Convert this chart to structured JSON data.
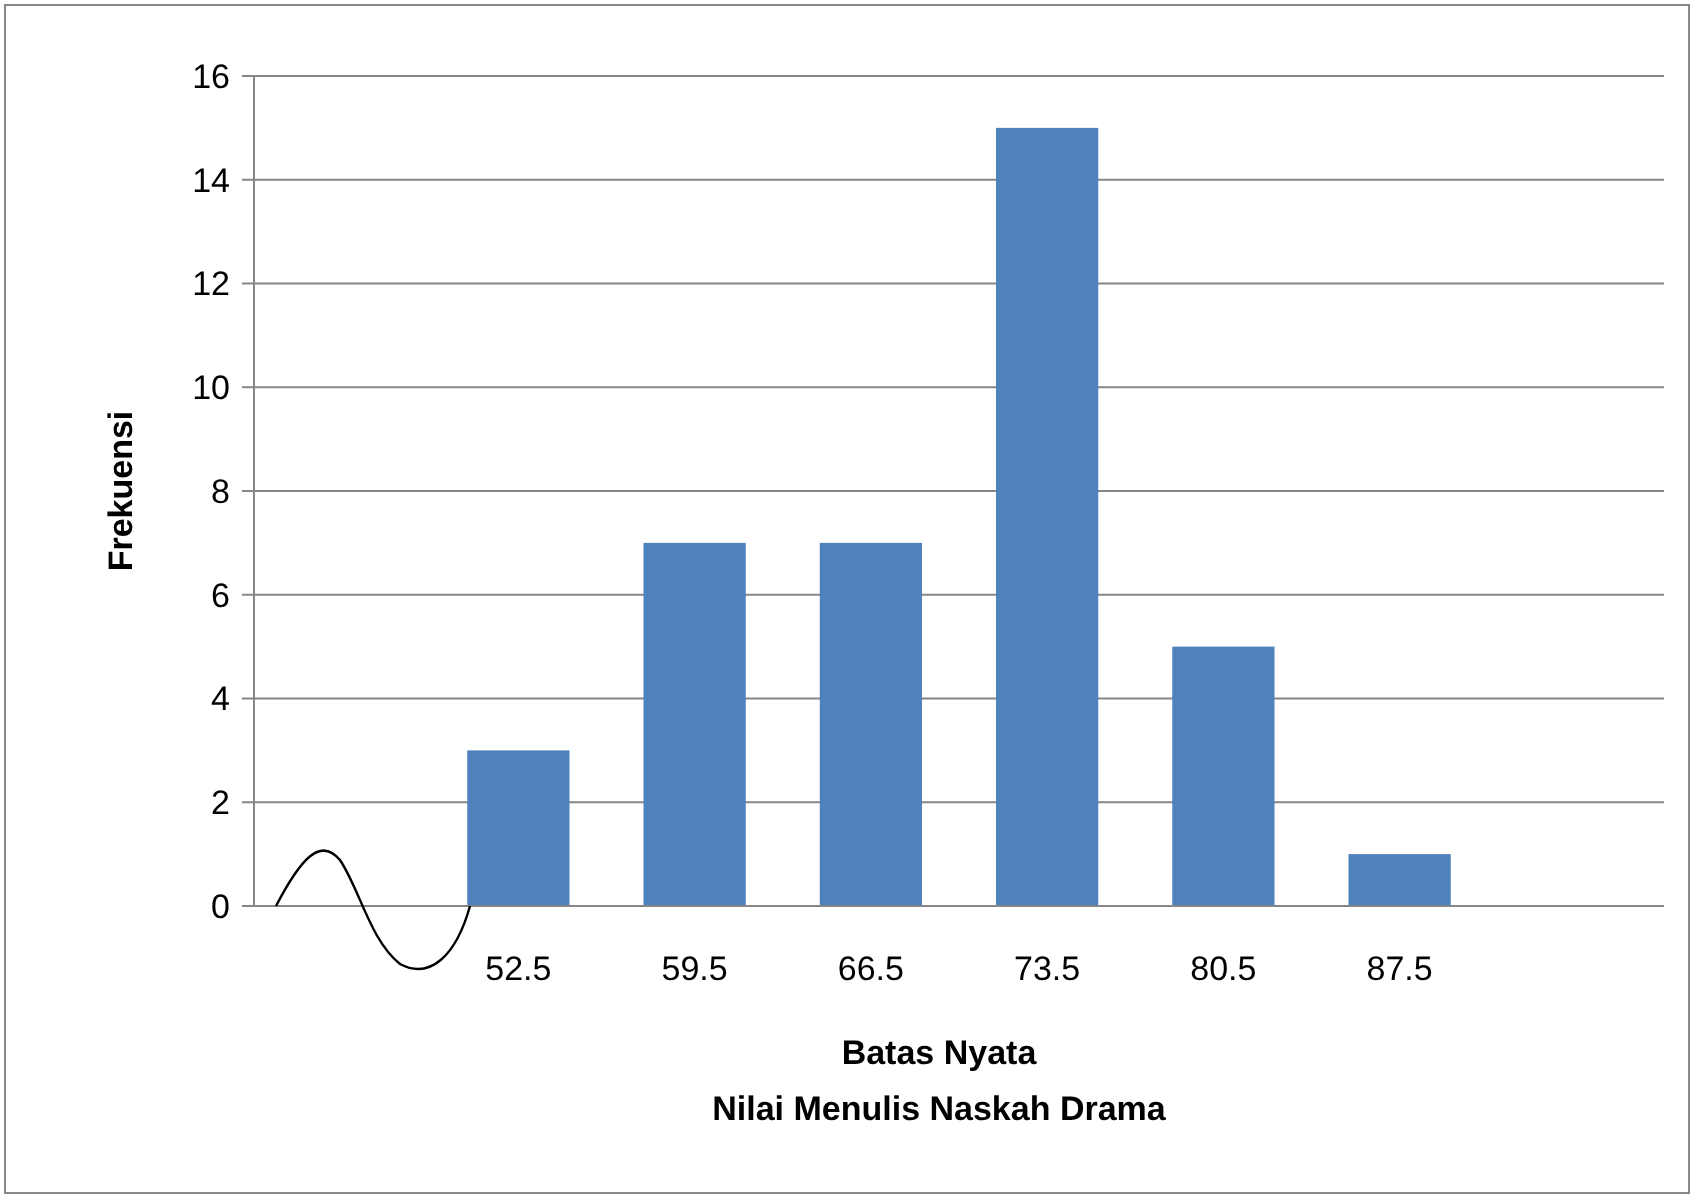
{
  "chart_data": {
    "type": "bar",
    "xlabel": "Batas Nyata\nNilai Menulis Naskah Drama",
    "ylabel": "Frekuensi",
    "categories": [
      null,
      "52.5",
      "59.5",
      "66.5",
      "73.5",
      "80.5",
      "87.5",
      null
    ],
    "values": [
      null,
      3,
      7,
      7,
      15,
      5,
      1,
      null
    ],
    "color": "#4f81bd",
    "ylim": [
      0,
      16
    ],
    "yticks": [
      0,
      2,
      4,
      6,
      8,
      10,
      12,
      14,
      16
    ],
    "grid": "y"
  }
}
